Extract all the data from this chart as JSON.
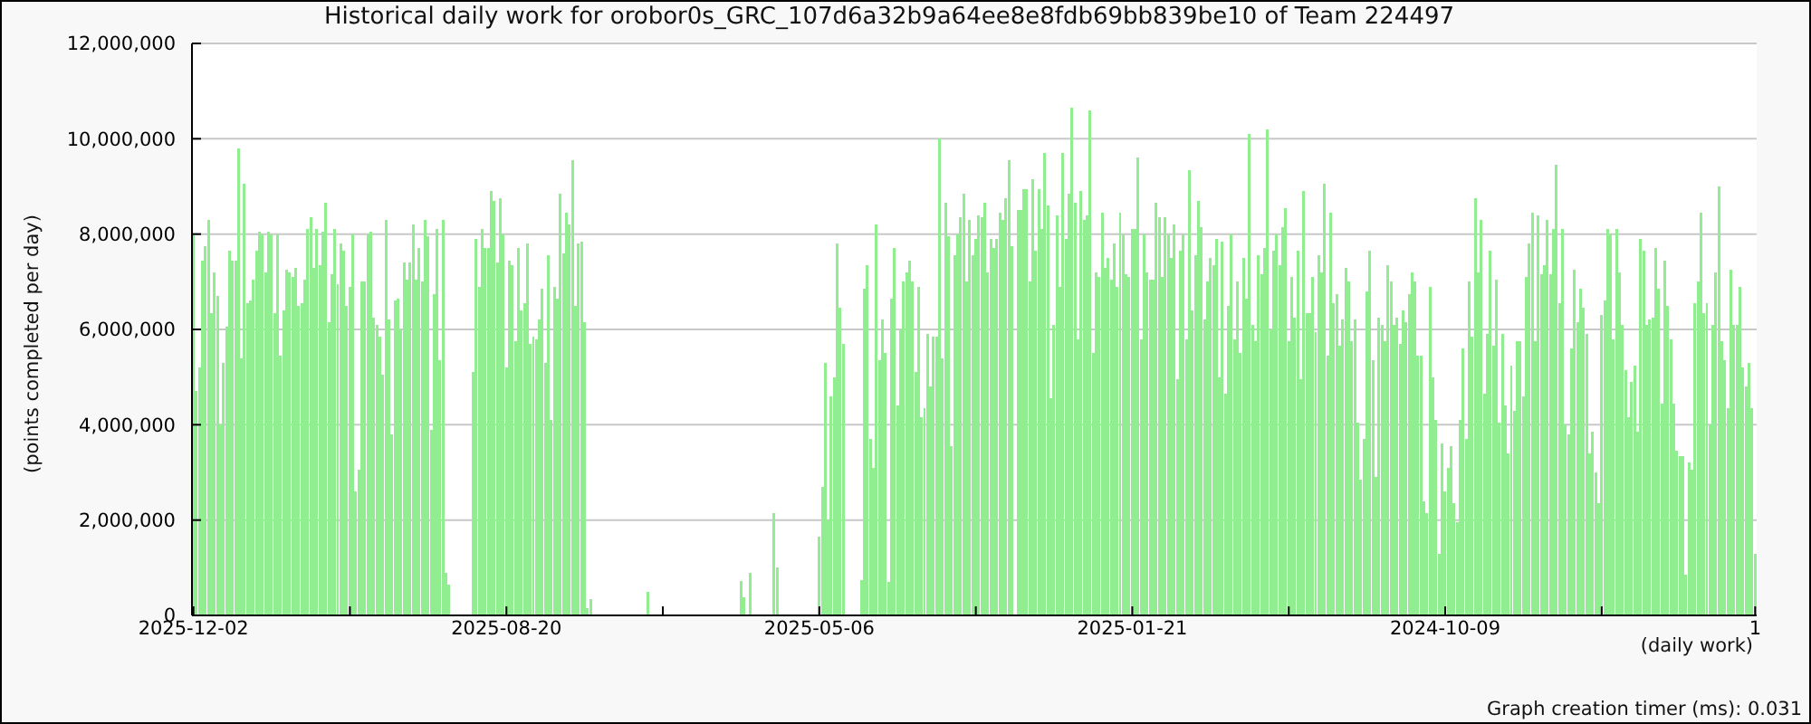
{
  "chart_data": {
    "type": "bar",
    "title": "Historical daily work for orobor0s_GRC_107d6a32b9a64ee8e8fdb69bb839be10 of Team 224497",
    "xlabel": "(daily work)",
    "ylabel": "(points completed per day)",
    "annotations": [
      "Graph creation timer (ms): 0.031"
    ],
    "categories": [
      "2025-12-02",
      null,
      null,
      null,
      null,
      null,
      null,
      null,
      null,
      null,
      null,
      null,
      null,
      null,
      null,
      null,
      null,
      null,
      null,
      null,
      null,
      null,
      null,
      null,
      null,
      null,
      null,
      null,
      null,
      null,
      null,
      null,
      null,
      null,
      null,
      null,
      null,
      null,
      null,
      null,
      null,
      null,
      null,
      null,
      null,
      null,
      null,
      null,
      null,
      null,
      null,
      null,
      null,
      null,
      null,
      null,
      null,
      null,
      null,
      null,
      null,
      null,
      null,
      null,
      null,
      null,
      null,
      null,
      null,
      null,
      null,
      null,
      null,
      null,
      null,
      null,
      null,
      null,
      null,
      null,
      null,
      null,
      null,
      null,
      null,
      null,
      null,
      null,
      null,
      null,
      null,
      null,
      null,
      null,
      null,
      null,
      null,
      null,
      null,
      null,
      null,
      null,
      null,
      null,
      "2025-08-20",
      null,
      null,
      null,
      null,
      null,
      null,
      null,
      null,
      null,
      null,
      null,
      null,
      null,
      null,
      null,
      null,
      null,
      null,
      null,
      null,
      null,
      null,
      null,
      null,
      null,
      null,
      null,
      null,
      null,
      null,
      null,
      null,
      null,
      null,
      null,
      null,
      null,
      null,
      null,
      null,
      null,
      null,
      null,
      null,
      null,
      null,
      null,
      null,
      null,
      null,
      null,
      null,
      null,
      null,
      null,
      null,
      null,
      null,
      null,
      null,
      null,
      null,
      null,
      null,
      null,
      null,
      null,
      null,
      null,
      null,
      null,
      null,
      null,
      null,
      null,
      null,
      null,
      null,
      null,
      null,
      null,
      null,
      null,
      null,
      null,
      null,
      null,
      null,
      null,
      null,
      null,
      null,
      null,
      null,
      null,
      null,
      null,
      null,
      null,
      null,
      null,
      null,
      null,
      "2025-05-06",
      null,
      null,
      null,
      null,
      null,
      null,
      null,
      null,
      null,
      null,
      null,
      null,
      null,
      null,
      null,
      null,
      null,
      null,
      null,
      null,
      null,
      null,
      null,
      null,
      null,
      null,
      null,
      null,
      null,
      null,
      null,
      null,
      null,
      null,
      null,
      null,
      null,
      null,
      null,
      null,
      null,
      null,
      null,
      null,
      null,
      null,
      null,
      null,
      null,
      null,
      null,
      null,
      null,
      null,
      null,
      null,
      null,
      null,
      null,
      null,
      null,
      null,
      null,
      null,
      null,
      null,
      null,
      null,
      null,
      null,
      null,
      null,
      null,
      null,
      null,
      null,
      null,
      null,
      null,
      null,
      null,
      null,
      null,
      null,
      null,
      null,
      null,
      null,
      null,
      null,
      null,
      null,
      null,
      null,
      null,
      null,
      null,
      null,
      null,
      null,
      null,
      null,
      null,
      "2025-01-21",
      null,
      null,
      null,
      null,
      null,
      null,
      null,
      null,
      null,
      null,
      null,
      null,
      null,
      null,
      null,
      null,
      null,
      null,
      null,
      null,
      null,
      null,
      null,
      null,
      null,
      null,
      null,
      null,
      null,
      null,
      null,
      null,
      null,
      null,
      null,
      null,
      null,
      null,
      null,
      null,
      null,
      null,
      null,
      null,
      null,
      null,
      null,
      null,
      null,
      null,
      null,
      null,
      null,
      null,
      null,
      null,
      null,
      null,
      null,
      null,
      null,
      null,
      null,
      null,
      null,
      null,
      null,
      null,
      null,
      null,
      null,
      null,
      null,
      null,
      null,
      null,
      null,
      null,
      null,
      null,
      null,
      null,
      null,
      null,
      null,
      null,
      null,
      null,
      null,
      null,
      null,
      null,
      null,
      null,
      null,
      null,
      null,
      null,
      null,
      null,
      null,
      null,
      null,
      "2024-10-09",
      null,
      null,
      null,
      null,
      null,
      null,
      null,
      null,
      null,
      null,
      null,
      null,
      null,
      null,
      null,
      null,
      null,
      null,
      null,
      null,
      null,
      null,
      null,
      null,
      null,
      null,
      null,
      null,
      null,
      null,
      null,
      null,
      null,
      null,
      null,
      null,
      null,
      null,
      null,
      null,
      null,
      null,
      null,
      null,
      null,
      null,
      null,
      null,
      null,
      null,
      null,
      null,
      null,
      null,
      null,
      null,
      null,
      null,
      null,
      null,
      null,
      null,
      null,
      null,
      null,
      null,
      null,
      null,
      null,
      null,
      null,
      null,
      null,
      null,
      null,
      null,
      null,
      null,
      null,
      null,
      null,
      null,
      null,
      null,
      null,
      null,
      null,
      null,
      null,
      null,
      null,
      null,
      null,
      null,
      null,
      null,
      null,
      null,
      null,
      null,
      null,
      null,
      "1"
    ],
    "values": [
      8000000,
      4700000,
      5200000,
      7450000,
      7750000,
      8300000,
      6350000,
      7200000,
      6700000,
      4000000,
      5300000,
      6050000,
      7650000,
      7450000,
      7450000,
      9800000,
      5400000,
      9050000,
      6550000,
      6600000,
      7050000,
      7650000,
      8050000,
      8000000,
      7200000,
      8050000,
      8000000,
      6350000,
      8000000,
      5450000,
      6400000,
      7250000,
      7200000,
      7100000,
      7300000,
      6500000,
      6550000,
      7050000,
      8100000,
      8350000,
      7300000,
      8100000,
      7350000,
      8050000,
      8650000,
      6150000,
      7150000,
      8100000,
      6950000,
      7800000,
      7650000,
      6500000,
      6900000,
      8000000,
      2600000,
      3050000,
      7000000,
      7000000,
      8000000,
      8050000,
      6250000,
      6100000,
      5850000,
      5050000,
      8300000,
      6200000,
      3800000,
      6600000,
      6650000,
      6000000,
      7400000,
      7050000,
      7400000,
      8200000,
      7050000,
      7700000,
      7000000,
      8300000,
      7950000,
      3900000,
      6750000,
      8100000,
      5350000,
      8300000,
      900000,
      650000,
      0,
      0,
      0,
      0,
      0,
      0,
      0,
      5100000,
      7900000,
      6900000,
      8100000,
      7700000,
      7700000,
      8900000,
      8700000,
      7400000,
      8750000,
      8000000,
      5200000,
      7450000,
      7350000,
      5750000,
      7700000,
      6400000,
      6550000,
      7800000,
      5700000,
      5850000,
      5800000,
      6200000,
      6850000,
      5300000,
      7550000,
      4100000,
      6900000,
      6650000,
      8850000,
      7600000,
      8450000,
      8200000,
      9550000,
      6500000,
      7800000,
      7850000,
      6150000,
      150000,
      350000,
      0,
      0,
      0,
      0,
      0,
      0,
      0,
      0,
      0,
      0,
      0,
      0,
      0,
      0,
      0,
      0,
      0,
      0,
      500000,
      0,
      0,
      0,
      0,
      0,
      0,
      0,
      0,
      0,
      0,
      0,
      0,
      0,
      0,
      0,
      0,
      0,
      0,
      0,
      0,
      0,
      0,
      0,
      0,
      0,
      0,
      0,
      0,
      0,
      0,
      720000,
      380000,
      0,
      900000,
      0,
      0,
      0,
      0,
      0,
      0,
      0,
      2150000,
      1000000,
      0,
      0,
      0,
      0,
      0,
      0,
      0,
      0,
      0,
      0,
      0,
      0,
      0,
      1650000,
      2700000,
      5300000,
      2000000,
      4600000,
      5000000,
      7800000,
      6450000,
      5700000,
      0,
      0,
      0,
      0,
      0,
      750000,
      6850000,
      7350000,
      3700000,
      3100000,
      8200000,
      5350000,
      6200000,
      5500000,
      700000,
      6650000,
      7700000,
      4400000,
      6000000,
      7000000,
      7200000,
      7450000,
      7000000,
      5100000,
      6900000,
      4150000,
      4350000,
      5900000,
      4800000,
      5850000,
      5850000,
      10000000,
      5400000,
      8650000,
      7950000,
      3550000,
      7550000,
      8000000,
      8350000,
      8850000,
      7000000,
      8300000,
      7550000,
      7900000,
      8400000,
      8350000,
      8650000,
      7200000,
      7900000,
      7700000,
      7900000,
      8450000,
      8300000,
      8750000,
      9550000,
      7750000,
      0,
      8500000,
      8500000,
      8950000,
      8950000,
      7000000,
      9150000,
      7650000,
      8950000,
      8100000,
      9700000,
      8600000,
      4550000,
      6100000,
      8400000,
      6900000,
      9700000,
      7900000,
      8850000,
      10650000,
      8650000,
      5800000,
      8900000,
      8300000,
      8400000,
      10600000,
      5500000,
      7200000,
      7100000,
      8450000,
      7300000,
      7500000,
      7050000,
      7800000,
      6900000,
      8450000,
      8000000,
      7150000,
      7100000,
      8100000,
      8100000,
      9600000,
      5800000,
      8000000,
      7200000,
      7050000,
      7050000,
      8650000,
      8350000,
      7100000,
      8350000,
      8000000,
      7500000,
      8200000,
      4950000,
      7650000,
      8000000,
      5800000,
      9350000,
      6400000,
      7550000,
      8700000,
      8150000,
      6200000,
      7000000,
      7500000,
      7350000,
      7900000,
      5000000,
      7850000,
      4650000,
      6500000,
      8000000,
      5800000,
      7000000,
      5500000,
      7500000,
      6650000,
      10100000,
      6100000,
      5750000,
      7550000,
      7150000,
      7700000,
      10200000,
      6000000,
      7650000,
      8000000,
      7350000,
      8150000,
      8550000,
      5750000,
      7100000,
      6250000,
      7650000,
      4950000,
      8900000,
      6350000,
      6350000,
      7100000,
      5950000,
      7550000,
      7200000,
      9050000,
      5450000,
      8450000,
      6550000,
      6750000,
      5650000,
      6200000,
      7300000,
      7000000,
      5750000,
      6200000,
      4050000,
      2850000,
      3700000,
      6800000,
      7650000,
      5350000,
      2900000,
      6250000,
      6100000,
      5750000,
      7350000,
      7000000,
      6100000,
      6250000,
      5700000,
      6400000,
      6150000,
      6750000,
      7200000,
      7000000,
      5450000,
      5450000,
      2400000,
      2150000,
      6900000,
      5000000,
      4100000,
      1300000,
      3600000,
      2600000,
      3100000,
      3550000,
      2350000,
      1950000,
      4100000,
      5600000,
      3700000,
      7000000,
      5850000,
      8750000,
      7200000,
      8300000,
      4650000,
      5900000,
      7650000,
      5650000,
      7050000,
      4050000,
      5900000,
      4400000,
      3400000,
      5250000,
      4300000,
      5750000,
      5750000,
      4600000,
      7100000,
      7800000,
      8450000,
      5750000,
      8400000,
      7150000,
      7350000,
      8300000,
      7150000,
      8100000,
      9450000,
      6550000,
      8100000,
      4000000,
      3800000,
      5600000,
      7250000,
      6150000,
      6850000,
      6450000,
      5900000,
      3400000,
      3850000,
      3000000,
      2350000,
      6300000,
      6600000,
      8100000,
      8000000,
      5800000,
      8100000,
      7200000,
      6100000,
      5150000,
      4150000,
      4900000,
      5250000,
      3850000,
      7900000,
      7650000,
      6100000,
      6200000,
      6250000,
      7700000,
      6850000,
      4450000,
      7450000,
      6500000,
      5800000,
      4450000,
      3450000,
      3350000,
      3350000,
      850000,
      3200000,
      3050000,
      6550000,
      7000000,
      8450000,
      6350000,
      6550000,
      4000000,
      6100000,
      7200000,
      9000000,
      5750000,
      5350000,
      4350000,
      7250000,
      6100000,
      6100000,
      6900000,
      5200000,
      4800000,
      5300000,
      4350000,
      1300000
    ],
    "color": "#90ee90",
    "ylim": [
      0,
      12000000
    ],
    "yticks": [
      0,
      {
        "value": 2000000,
        "label": "2,000,000"
      },
      {
        "value": 4000000,
        "label": "4,000,000"
      },
      {
        "value": 6000000,
        "label": "6,000,000"
      },
      {
        "value": 8000000,
        "label": "8,000,000"
      },
      {
        "value": 10000000,
        "label": "10,000,000"
      },
      {
        "value": 12000000,
        "label": "12,000,000"
      }
    ],
    "grid": "y"
  }
}
